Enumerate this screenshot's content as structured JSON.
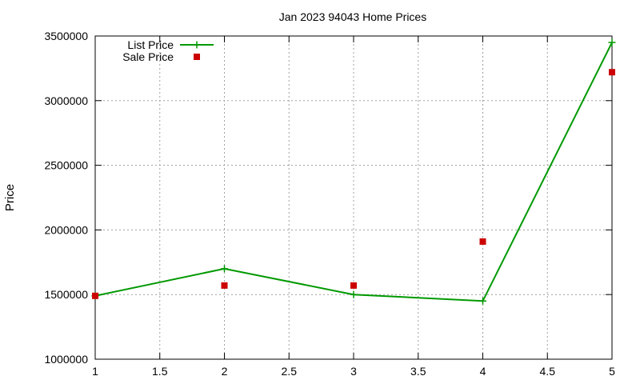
{
  "chart_data": {
    "type": "line",
    "title": "Jan 2023 94043 Home Prices",
    "xlabel": "",
    "ylabel": "Price",
    "xlim": [
      1,
      5
    ],
    "ylim": [
      1000000,
      3500000
    ],
    "x_ticks": [
      1,
      1.5,
      2,
      2.5,
      3,
      3.5,
      4,
      4.5,
      5
    ],
    "x_tick_labels": [
      "1",
      "1.5",
      "2",
      "2.5",
      "3",
      "3.5",
      "4",
      "4.5",
      "5"
    ],
    "y_ticks": [
      1000000,
      1500000,
      2000000,
      2500000,
      3000000,
      3500000
    ],
    "y_tick_labels": [
      "1000000",
      "1500000",
      "2000000",
      "2500000",
      "3000000",
      "3500000"
    ],
    "grid": true,
    "legend_position": "top-left",
    "series": [
      {
        "name": "List Price",
        "style": "line-with-plus-markers",
        "color": "#009900",
        "x": [
          1,
          2,
          3,
          4,
          5
        ],
        "y": [
          1490000,
          1700000,
          1500000,
          1450000,
          3450000
        ]
      },
      {
        "name": "Sale Price",
        "style": "square-markers",
        "color": "#cc0000",
        "x": [
          1,
          2,
          3,
          4,
          5
        ],
        "y": [
          1490000,
          1570000,
          1570000,
          1910000,
          3220000
        ]
      }
    ]
  }
}
